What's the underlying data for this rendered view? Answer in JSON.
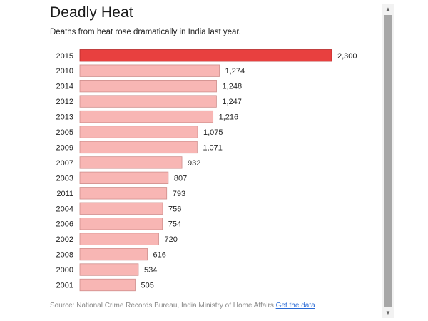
{
  "title": "Deadly Heat",
  "subtitle": "Deaths from heat rose dramatically in India last year.",
  "source": {
    "text": "Source: National Crime Records Bureau, India Ministry of Home Affairs",
    "link_label": "Get the data"
  },
  "scrollbar": {
    "up_icon": "▲",
    "down_icon": "▼"
  },
  "colors": {
    "highlight": "#e8403f",
    "highlight_stroke": "#b52a2a",
    "bar": "#f8b6b4",
    "bar_stroke": "#cf8e8c"
  },
  "chart_data": {
    "type": "bar",
    "orientation": "horizontal",
    "title": "Deadly Heat",
    "subtitle": "Deaths from heat rose dramatically in India last year.",
    "categories": [
      "2015",
      "2010",
      "2014",
      "2012",
      "2013",
      "2005",
      "2009",
      "2007",
      "2003",
      "2011",
      "2004",
      "2006",
      "2002",
      "2008",
      "2000",
      "2001"
    ],
    "values": [
      2300,
      1274,
      1248,
      1247,
      1216,
      1075,
      1071,
      932,
      807,
      793,
      756,
      754,
      720,
      616,
      534,
      505
    ],
    "value_labels": [
      "2,300",
      "1,274",
      "1,248",
      "1,247",
      "1,216",
      "1,075",
      "1,071",
      "932",
      "807",
      "793",
      "756",
      "754",
      "720",
      "616",
      "534",
      "505"
    ],
    "highlight": "2015",
    "xlim": [
      0,
      2300
    ],
    "grid": false,
    "xlabel": "",
    "ylabel": ""
  }
}
